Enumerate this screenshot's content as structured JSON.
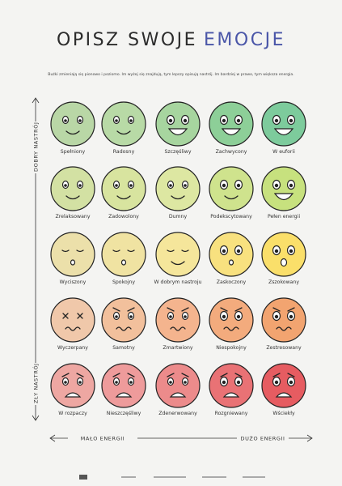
{
  "header": {
    "title_start": "OPISZ SWOJE",
    "title_accent": "EMOCJE",
    "subtitle": "Buźki zmieniają się pionowo i poziomo. Im wyżej się znajdują, tym lepszy opisują nastrój. Im bardziej w prawo, tym większa energia."
  },
  "axes": {
    "good_mood": "DOBRY NASTRÓJ",
    "bad_mood": "ZŁY NASTRÓJ",
    "low_energy": "MAŁO ENERGII",
    "high_energy": "DUŻO ENERGII"
  },
  "grid": [
    [
      "Spełniony",
      "Radosny",
      "Szczęśliwy",
      "Zachwycony",
      "W euforii"
    ],
    [
      "Zrelaksowany",
      "Zadowolony",
      "Dumny",
      "Podekscytowany",
      "Pełen energii"
    ],
    [
      "Wyciszony",
      "Spokojny",
      "W dobrym nastroju",
      "Zaskoczony",
      "Zszokowany"
    ],
    [
      "Wyczerpany",
      "Samotny",
      "Zmartwiony",
      "Niespokojny",
      "Zestresowany"
    ],
    [
      "W rozpaczy",
      "Nieszczęśliwy",
      "Zdenerwowany",
      "Rozgniewany",
      "Wściekły"
    ]
  ]
}
